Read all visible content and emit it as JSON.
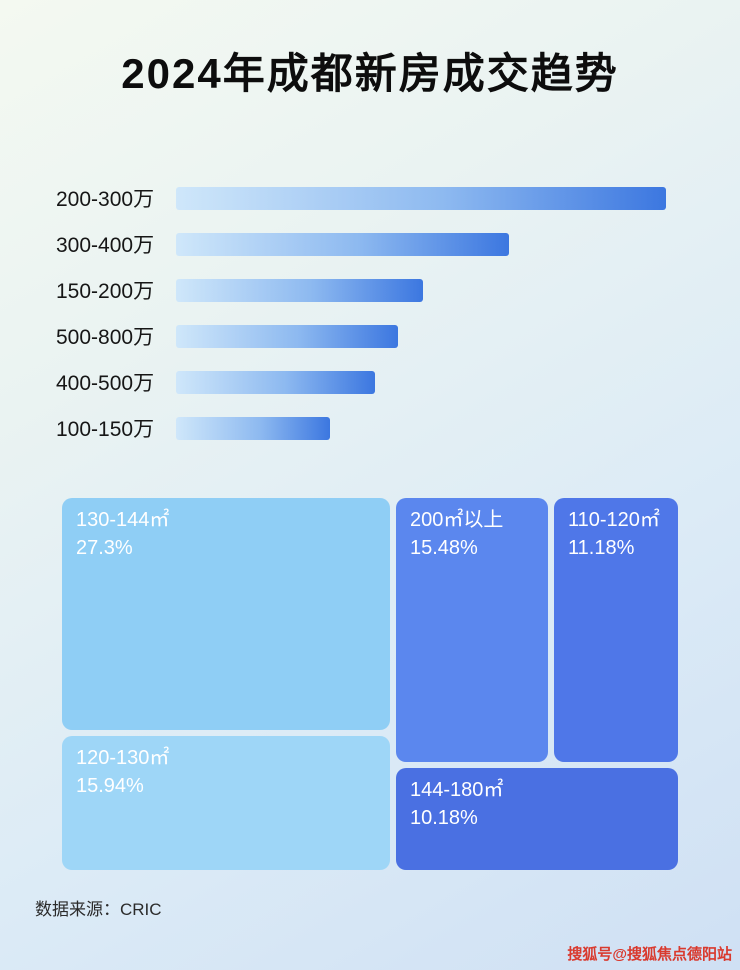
{
  "title": "2024年成都新房成交趋势",
  "chart_data": [
    {
      "type": "bar",
      "orientation": "horizontal",
      "title": "2024年成都新房成交趋势",
      "categories": [
        "200-300万",
        "300-400万",
        "150-200万",
        "500-800万",
        "400-500万",
        "100-150万"
      ],
      "values": [
        100,
        68,
        50.5,
        45.4,
        40.6,
        31.5
      ],
      "values_unit": "relative length, % of longest bar (no numeric labels shown)",
      "bar_gradient": [
        "#cfe7fa",
        "#3c77e0"
      ],
      "xlabel": "",
      "ylabel": "",
      "grid": false,
      "legend": false
    },
    {
      "type": "treemap",
      "items": [
        {
          "label": "130-144㎡",
          "value": 27.3,
          "value_label": "27.3%",
          "color": "#8fcef5"
        },
        {
          "label": "120-130㎡",
          "value": 15.94,
          "value_label": "15.94%",
          "color": "#9ed6f7"
        },
        {
          "label": "200㎡以上",
          "value": 15.48,
          "value_label": "15.48%",
          "color": "#5b87ee"
        },
        {
          "label": "110-120㎡",
          "value": 11.18,
          "value_label": "11.18%",
          "color": "#4f77e8"
        },
        {
          "label": "144-180㎡",
          "value": 10.18,
          "value_label": "10.18%",
          "color": "#4a70e2"
        }
      ]
    }
  ],
  "footer": {
    "source": "数据来源：CRIC"
  },
  "watermark": {
    "text": "搜狐号@搜狐焦点德阳站",
    "color": "#d93a2e"
  }
}
